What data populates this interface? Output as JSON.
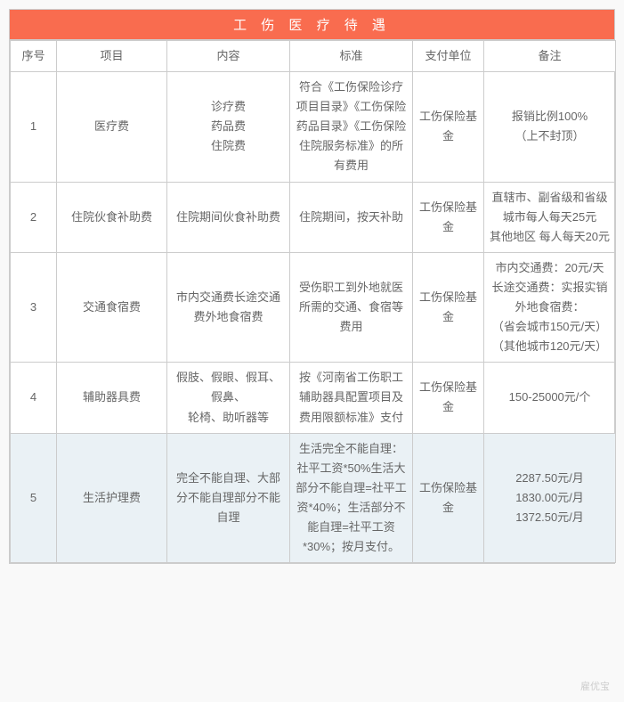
{
  "title": "工 伤 医 疗 待 遇",
  "title_bg": "#f96c4f",
  "title_color": "#ffffff",
  "border_color": "#cccccc",
  "text_color": "#666666",
  "highlight_bg": "#eaf1f5",
  "font_family": "Microsoft YaHei",
  "title_fontsize": 15,
  "cell_fontsize": 13,
  "columns": [
    {
      "key": "no",
      "label": "序号",
      "width": 52
    },
    {
      "key": "item",
      "label": "项目",
      "width": 124
    },
    {
      "key": "content",
      "label": "内容",
      "width": 138
    },
    {
      "key": "standard",
      "label": "标准",
      "width": 138
    },
    {
      "key": "payer",
      "label": "支付单位",
      "width": 80
    },
    {
      "key": "remark",
      "label": "备注",
      "width": 148
    }
  ],
  "rows": [
    {
      "no": "1",
      "item": "医疗费",
      "content": "诊疗费\n药品费\n住院费",
      "standard": "符合《工伤保险诊疗项目目录》《工伤保险药品目录》《工伤保险住院服务标准》的所有费用",
      "payer": "工伤保险基金",
      "remark": "报销比例100%\n（上不封顶）",
      "highlight": false
    },
    {
      "no": "2",
      "item": "住院伙食补助费",
      "content": "住院期间伙食补助费",
      "standard": "住院期间，按天补助",
      "payer": "工伤保险基金",
      "remark": "直辖市、副省级和省级城市每人每天25元\n其他地区 每人每天20元",
      "highlight": false
    },
    {
      "no": "3",
      "item": "交通食宿费",
      "content": "市内交通费长途交通费外地食宿费",
      "standard": "受伤职工到外地就医所需的交通、食宿等费用",
      "payer": "工伤保险基金",
      "remark": "市内交通费：20元/天\n长途交通费：实报实销外地食宿费：\n（省会城市150元/天）\n（其他城市120元/天）",
      "highlight": false
    },
    {
      "no": "4",
      "item": "辅助器具费",
      "content": "假肢、假眼、假耳、假鼻、\n轮椅、助听器等",
      "standard": "按《河南省工伤职工辅助器具配置项目及费用限额标准》支付",
      "payer": "工伤保险基金",
      "remark": "150-25000元/个",
      "highlight": false
    },
    {
      "no": "5",
      "item": "生活护理费",
      "content": "完全不能自理、大部分不能自理部分不能自理",
      "standard": "生活完全不能自理：社平工资*50%生活大部分不能自理=社平工资*40%；生活部分不能自理=社平工资*30%；按月支付。",
      "payer": "工伤保险基金",
      "remark": "2287.50元/月\n1830.00元/月\n1372.50元/月",
      "highlight": true
    }
  ],
  "watermark": "雇优宝"
}
